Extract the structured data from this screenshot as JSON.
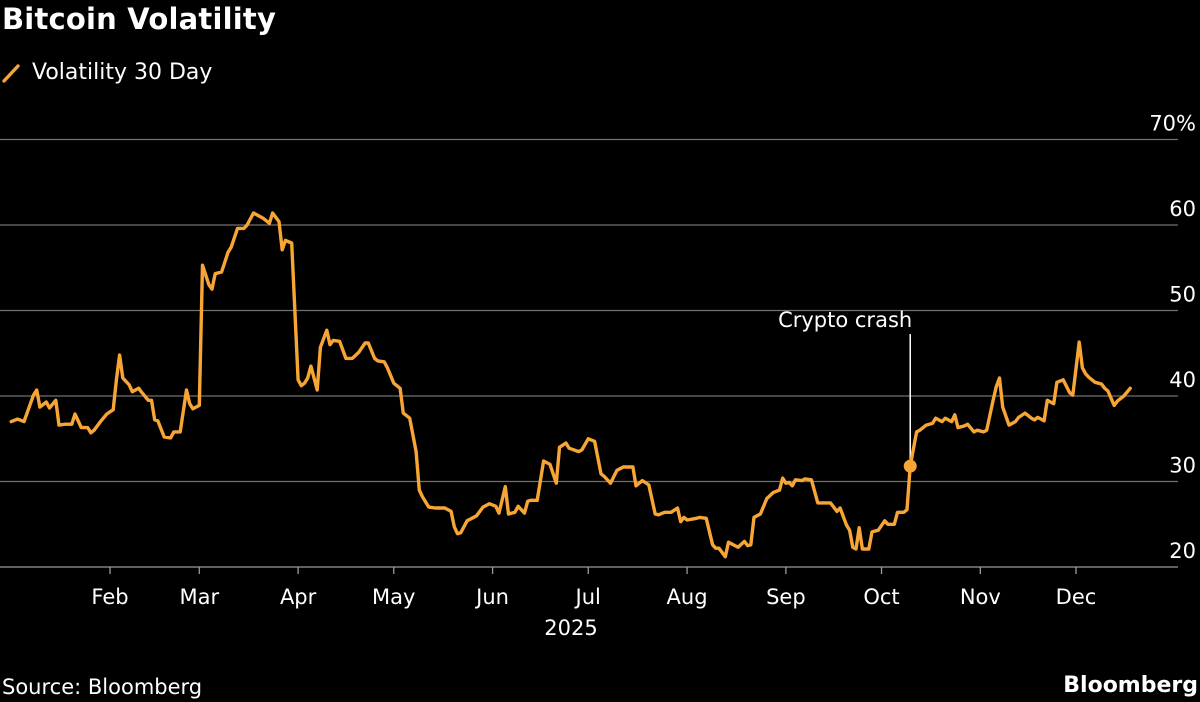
{
  "chart_data": {
    "type": "line",
    "title": "Bitcoin Volatility",
    "ylabel": "",
    "xlabel": "2025",
    "ylim": [
      20,
      70
    ],
    "y_ticks": [
      {
        "value": 70,
        "label": "70%"
      },
      {
        "value": 60,
        "label": "60"
      },
      {
        "value": 50,
        "label": "50"
      },
      {
        "value": 40,
        "label": "40"
      },
      {
        "value": 30,
        "label": "30"
      },
      {
        "value": 20,
        "label": "20"
      }
    ],
    "x_ticks": [
      {
        "date": "2025-02-01",
        "label": "Feb"
      },
      {
        "date": "2025-03-01",
        "label": "Mar"
      },
      {
        "date": "2025-04-01",
        "label": "Apr"
      },
      {
        "date": "2025-05-01",
        "label": "May"
      },
      {
        "date": "2025-06-01",
        "label": "Jun"
      },
      {
        "date": "2025-07-01",
        "label": "Jul"
      },
      {
        "date": "2025-08-01",
        "label": "Aug"
      },
      {
        "date": "2025-09-01",
        "label": "Sep"
      },
      {
        "date": "2025-10-01",
        "label": "Oct"
      },
      {
        "date": "2025-11-01",
        "label": "Nov"
      },
      {
        "date": "2025-12-01",
        "label": "Dec"
      }
    ],
    "grid": true,
    "legend_position": "top-left",
    "colors": {
      "series": "#f7a535",
      "grid": "#707070",
      "background": "#000000",
      "text": "#ffffff"
    },
    "series": [
      {
        "name": "Volatility 30 Day",
        "points": [
          [
            "2025-01-01",
            37.0
          ],
          [
            "2025-01-03",
            37.3
          ],
          [
            "2025-01-05",
            37.0
          ],
          [
            "2025-01-08",
            40.1
          ],
          [
            "2025-01-09",
            40.7
          ],
          [
            "2025-01-10",
            38.7
          ],
          [
            "2025-01-12",
            39.3
          ],
          [
            "2025-01-13",
            38.6
          ],
          [
            "2025-01-15",
            39.5
          ],
          [
            "2025-01-16",
            36.6
          ],
          [
            "2025-01-18",
            36.7
          ],
          [
            "2025-01-20",
            36.7
          ],
          [
            "2025-01-21",
            37.9
          ],
          [
            "2025-01-23",
            36.3
          ],
          [
            "2025-01-25",
            36.3
          ],
          [
            "2025-01-26",
            35.7
          ],
          [
            "2025-01-27",
            36.0
          ],
          [
            "2025-01-29",
            37.0
          ],
          [
            "2025-01-31",
            37.9
          ],
          [
            "2025-02-02",
            38.4
          ],
          [
            "2025-02-03",
            41.9
          ],
          [
            "2025-02-04",
            44.8
          ],
          [
            "2025-02-05",
            42.1
          ],
          [
            "2025-02-07",
            41.3
          ],
          [
            "2025-02-08",
            40.5
          ],
          [
            "2025-02-10",
            40.9
          ],
          [
            "2025-02-11",
            40.4
          ],
          [
            "2025-02-13",
            39.5
          ],
          [
            "2025-02-14",
            39.5
          ],
          [
            "2025-02-15",
            37.2
          ],
          [
            "2025-02-16",
            37.1
          ],
          [
            "2025-02-18",
            35.2
          ],
          [
            "2025-02-20",
            35.1
          ],
          [
            "2025-02-21",
            35.8
          ],
          [
            "2025-02-23",
            35.8
          ],
          [
            "2025-02-25",
            40.7
          ],
          [
            "2025-02-26",
            39.1
          ],
          [
            "2025-02-27",
            38.5
          ],
          [
            "2025-03-01",
            38.9
          ],
          [
            "2025-03-02",
            55.3
          ],
          [
            "2025-03-04",
            53.0
          ],
          [
            "2025-03-05",
            52.5
          ],
          [
            "2025-03-06",
            54.3
          ],
          [
            "2025-03-08",
            54.5
          ],
          [
            "2025-03-10",
            56.8
          ],
          [
            "2025-03-11",
            57.4
          ],
          [
            "2025-03-13",
            59.6
          ],
          [
            "2025-03-15",
            59.6
          ],
          [
            "2025-03-16",
            60.0
          ],
          [
            "2025-03-18",
            61.4
          ],
          [
            "2025-03-21",
            60.8
          ],
          [
            "2025-03-23",
            60.2
          ],
          [
            "2025-03-24",
            61.4
          ],
          [
            "2025-03-26",
            60.4
          ],
          [
            "2025-03-27",
            57.1
          ],
          [
            "2025-03-28",
            58.2
          ],
          [
            "2025-03-30",
            57.9
          ],
          [
            "2025-04-01",
            41.9
          ],
          [
            "2025-04-02",
            41.2
          ],
          [
            "2025-04-03",
            41.5
          ],
          [
            "2025-04-04",
            42.1
          ],
          [
            "2025-04-05",
            43.5
          ],
          [
            "2025-04-07",
            40.7
          ],
          [
            "2025-04-08",
            45.7
          ],
          [
            "2025-04-10",
            47.7
          ],
          [
            "2025-04-11",
            46.0
          ],
          [
            "2025-04-12",
            46.5
          ],
          [
            "2025-04-14",
            46.4
          ],
          [
            "2025-04-16",
            44.4
          ],
          [
            "2025-04-18",
            44.4
          ],
          [
            "2025-04-20",
            45.1
          ],
          [
            "2025-04-22",
            46.2
          ],
          [
            "2025-04-23",
            46.2
          ],
          [
            "2025-04-25",
            44.4
          ],
          [
            "2025-04-26",
            44.1
          ],
          [
            "2025-04-28",
            44.0
          ],
          [
            "2025-04-29",
            43.3
          ],
          [
            "2025-05-01",
            41.5
          ],
          [
            "2025-05-03",
            40.9
          ],
          [
            "2025-05-04",
            38.0
          ],
          [
            "2025-05-06",
            37.4
          ],
          [
            "2025-05-08",
            33.5
          ],
          [
            "2025-05-09",
            29.0
          ],
          [
            "2025-05-10",
            28.2
          ],
          [
            "2025-05-12",
            27.0
          ],
          [
            "2025-05-14",
            26.9
          ],
          [
            "2025-05-17",
            26.9
          ],
          [
            "2025-05-19",
            26.5
          ],
          [
            "2025-05-20",
            24.7
          ],
          [
            "2025-05-21",
            23.9
          ],
          [
            "2025-05-22",
            24.0
          ],
          [
            "2025-05-24",
            25.4
          ],
          [
            "2025-05-25",
            25.6
          ],
          [
            "2025-05-27",
            26.0
          ],
          [
            "2025-05-29",
            27.0
          ],
          [
            "2025-05-31",
            27.4
          ],
          [
            "2025-06-02",
            27.1
          ],
          [
            "2025-06-03",
            26.3
          ],
          [
            "2025-06-05",
            29.4
          ],
          [
            "2025-06-06",
            26.2
          ],
          [
            "2025-06-08",
            26.4
          ],
          [
            "2025-06-09",
            27.1
          ],
          [
            "2025-06-11",
            26.3
          ],
          [
            "2025-06-12",
            27.7
          ],
          [
            "2025-06-13",
            27.8
          ],
          [
            "2025-06-15",
            27.8
          ],
          [
            "2025-06-17",
            32.4
          ],
          [
            "2025-06-19",
            32.0
          ],
          [
            "2025-06-21",
            29.8
          ],
          [
            "2025-06-22",
            34.0
          ],
          [
            "2025-06-24",
            34.5
          ],
          [
            "2025-06-25",
            33.9
          ],
          [
            "2025-06-28",
            33.5
          ],
          [
            "2025-06-29",
            33.7
          ],
          [
            "2025-07-01",
            35.0
          ],
          [
            "2025-07-03",
            34.7
          ],
          [
            "2025-07-05",
            30.9
          ],
          [
            "2025-07-06",
            30.6
          ],
          [
            "2025-07-08",
            29.8
          ],
          [
            "2025-07-10",
            31.3
          ],
          [
            "2025-07-12",
            31.7
          ],
          [
            "2025-07-15",
            31.7
          ],
          [
            "2025-07-16",
            29.5
          ],
          [
            "2025-07-18",
            30.1
          ],
          [
            "2025-07-20",
            29.6
          ],
          [
            "2025-07-22",
            26.2
          ],
          [
            "2025-07-23",
            26.1
          ],
          [
            "2025-07-25",
            26.4
          ],
          [
            "2025-07-27",
            26.4
          ],
          [
            "2025-07-29",
            26.9
          ],
          [
            "2025-07-30",
            25.3
          ],
          [
            "2025-07-31",
            25.8
          ],
          [
            "2025-08-01",
            25.5
          ],
          [
            "2025-08-04",
            25.7
          ],
          [
            "2025-08-05",
            25.8
          ],
          [
            "2025-08-07",
            25.7
          ],
          [
            "2025-08-09",
            22.6
          ],
          [
            "2025-08-10",
            22.2
          ],
          [
            "2025-08-11",
            22.2
          ],
          [
            "2025-08-13",
            21.2
          ],
          [
            "2025-08-14",
            22.9
          ],
          [
            "2025-08-16",
            22.5
          ],
          [
            "2025-08-17",
            22.3
          ],
          [
            "2025-08-19",
            23.0
          ],
          [
            "2025-08-20",
            22.5
          ],
          [
            "2025-08-21",
            22.6
          ],
          [
            "2025-08-22",
            25.8
          ],
          [
            "2025-08-24",
            26.2
          ],
          [
            "2025-08-26",
            28.0
          ],
          [
            "2025-08-28",
            28.7
          ],
          [
            "2025-08-30",
            29.0
          ],
          [
            "2025-08-31",
            30.4
          ],
          [
            "2025-09-01",
            29.8
          ],
          [
            "2025-09-02",
            29.9
          ],
          [
            "2025-09-03",
            29.5
          ],
          [
            "2025-09-04",
            30.2
          ],
          [
            "2025-09-06",
            30.1
          ],
          [
            "2025-09-07",
            30.3
          ],
          [
            "2025-09-09",
            30.2
          ],
          [
            "2025-09-11",
            27.5
          ],
          [
            "2025-09-13",
            27.5
          ],
          [
            "2025-09-15",
            27.5
          ],
          [
            "2025-09-17",
            26.5
          ],
          [
            "2025-09-18",
            26.9
          ],
          [
            "2025-09-20",
            24.9
          ],
          [
            "2025-09-21",
            24.3
          ],
          [
            "2025-09-22",
            22.3
          ],
          [
            "2025-09-23",
            22.1
          ],
          [
            "2025-09-24",
            24.6
          ],
          [
            "2025-09-25",
            22.1
          ],
          [
            "2025-09-27",
            22.1
          ],
          [
            "2025-09-28",
            24.1
          ],
          [
            "2025-09-30",
            24.3
          ],
          [
            "2025-10-02",
            25.4
          ],
          [
            "2025-10-03",
            25.0
          ],
          [
            "2025-10-05",
            25.0
          ],
          [
            "2025-10-06",
            26.4
          ],
          [
            "2025-10-08",
            26.4
          ],
          [
            "2025-10-09",
            26.7
          ],
          [
            "2025-10-10",
            31.8
          ],
          [
            "2025-10-12",
            35.8
          ],
          [
            "2025-10-13",
            36.0
          ],
          [
            "2025-10-15",
            36.6
          ],
          [
            "2025-10-17",
            36.8
          ],
          [
            "2025-10-18",
            37.4
          ],
          [
            "2025-10-20",
            37.0
          ],
          [
            "2025-10-21",
            37.4
          ],
          [
            "2025-10-23",
            37.0
          ],
          [
            "2025-10-24",
            37.8
          ],
          [
            "2025-10-25",
            36.3
          ],
          [
            "2025-10-27",
            36.5
          ],
          [
            "2025-10-28",
            36.7
          ],
          [
            "2025-10-30",
            35.8
          ],
          [
            "2025-10-31",
            36.0
          ],
          [
            "2025-11-02",
            35.8
          ],
          [
            "2025-11-03",
            36.0
          ],
          [
            "2025-11-05",
            39.5
          ],
          [
            "2025-11-06",
            41.1
          ],
          [
            "2025-11-07",
            42.1
          ],
          [
            "2025-11-08",
            38.7
          ],
          [
            "2025-11-10",
            36.6
          ],
          [
            "2025-11-12",
            37.0
          ],
          [
            "2025-11-13",
            37.5
          ],
          [
            "2025-11-15",
            38.0
          ],
          [
            "2025-11-17",
            37.4
          ],
          [
            "2025-11-18",
            37.2
          ],
          [
            "2025-11-19",
            37.5
          ],
          [
            "2025-11-21",
            37.1
          ],
          [
            "2025-11-22",
            39.5
          ],
          [
            "2025-11-24",
            39.1
          ],
          [
            "2025-11-25",
            41.6
          ],
          [
            "2025-11-27",
            41.9
          ],
          [
            "2025-11-29",
            40.4
          ],
          [
            "2025-11-30",
            40.1
          ],
          [
            "2025-12-02",
            46.3
          ],
          [
            "2025-12-03",
            43.3
          ],
          [
            "2025-12-04",
            42.6
          ],
          [
            "2025-12-05",
            42.2
          ],
          [
            "2025-12-07",
            41.6
          ],
          [
            "2025-12-09",
            41.4
          ],
          [
            "2025-12-10",
            40.9
          ],
          [
            "2025-12-11",
            40.6
          ],
          [
            "2025-12-13",
            38.9
          ],
          [
            "2025-12-14",
            39.4
          ],
          [
            "2025-12-16",
            40.0
          ],
          [
            "2025-12-18",
            40.9
          ]
        ]
      }
    ],
    "annotations": [
      {
        "label": "Crypto crash",
        "date": "2025-10-10",
        "value": 31.8
      }
    ]
  },
  "source": "Source: Bloomberg",
  "brand": "Bloomberg"
}
